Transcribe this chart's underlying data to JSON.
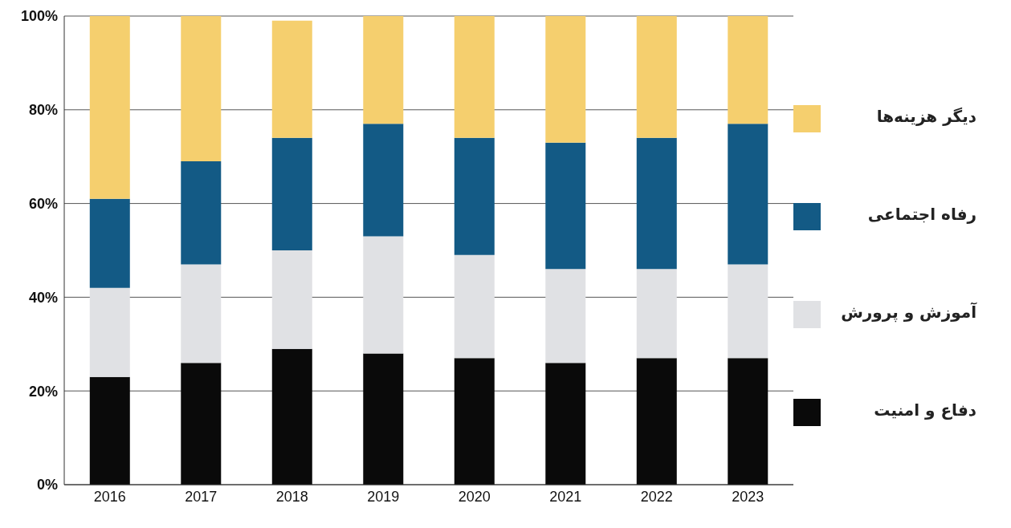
{
  "chart_data": {
    "type": "bar",
    "stacked": true,
    "categories": [
      "2016",
      "2017",
      "2018",
      "2019",
      "2020",
      "2021",
      "2022",
      "2023"
    ],
    "series": [
      {
        "name": "دفاع و امنیت",
        "color": "#0a0a0a",
        "values": [
          23,
          26,
          29,
          28,
          27,
          26,
          27,
          27
        ]
      },
      {
        "name": "آموزش و پرورش",
        "color": "#e0e1e4",
        "values": [
          19,
          21,
          21,
          25,
          22,
          20,
          19,
          20
        ]
      },
      {
        "name": "رفاه اجتماعی",
        "color": "#135a85",
        "values": [
          19,
          22,
          24,
          24,
          25,
          27,
          28,
          30
        ]
      },
      {
        "name": "دیگر هزینه‌ها",
        "color": "#f5cf6e",
        "values": [
          39,
          31,
          25,
          23,
          26,
          27,
          26,
          23
        ]
      }
    ],
    "ylim": [
      0,
      100
    ],
    "yticks": [
      {
        "value": 0,
        "label": "0%"
      },
      {
        "value": 20,
        "label": "20%"
      },
      {
        "value": 40,
        "label": "40%"
      },
      {
        "value": 60,
        "label": "60%"
      },
      {
        "value": 80,
        "label": "80%"
      },
      {
        "value": 100,
        "label": "100%"
      }
    ],
    "grid": "y",
    "legend": "right"
  }
}
